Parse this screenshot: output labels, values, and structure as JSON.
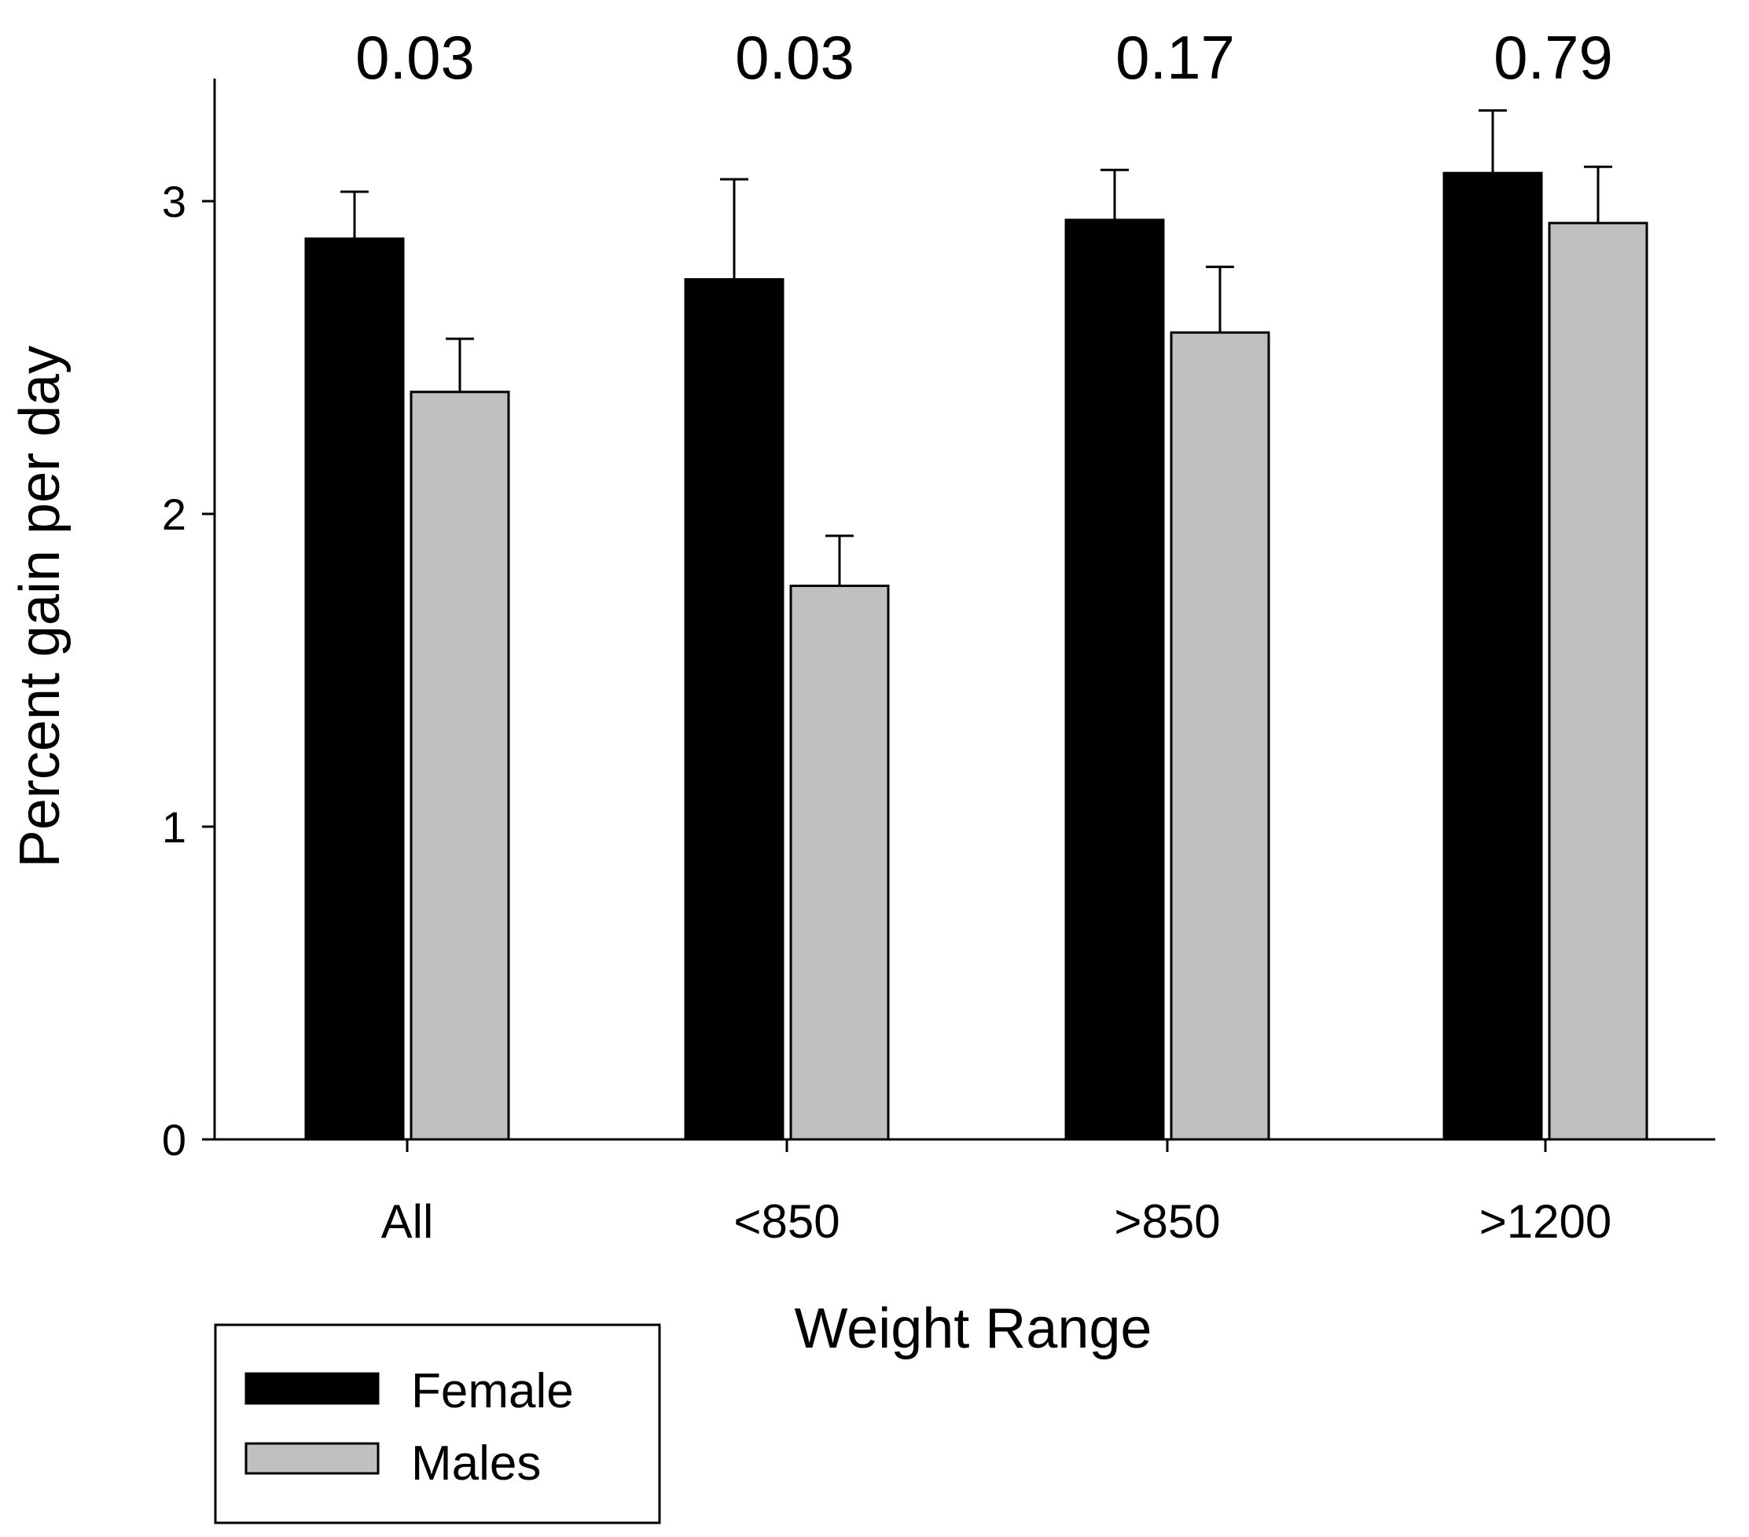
{
  "chart_data": {
    "type": "bar",
    "title": "",
    "xlabel": "Weight Range",
    "ylabel": "Percent gain per day",
    "categories": [
      "All",
      "<850",
      ">850",
      ">1200"
    ],
    "ylim": [
      0,
      3.35
    ],
    "yticks": [
      0,
      1,
      2,
      3
    ],
    "ytick_labels": [
      "0",
      "1",
      "2",
      "3"
    ],
    "grid": false,
    "series": [
      {
        "name": "Female",
        "color": "#000000",
        "values": [
          2.88,
          2.75,
          2.94,
          3.09
        ],
        "errors": [
          0.15,
          0.32,
          0.16,
          0.2
        ]
      },
      {
        "name": "Males",
        "color": "#c0c0c0",
        "values": [
          2.39,
          1.77,
          2.58,
          2.93
        ],
        "errors": [
          0.17,
          0.16,
          0.21,
          0.18
        ]
      }
    ],
    "annotations": [
      "0.03",
      "0.03",
      "0.17",
      "0.79"
    ],
    "legend": {
      "position": "bottom-left",
      "entries": [
        "Female",
        "Males"
      ]
    }
  }
}
